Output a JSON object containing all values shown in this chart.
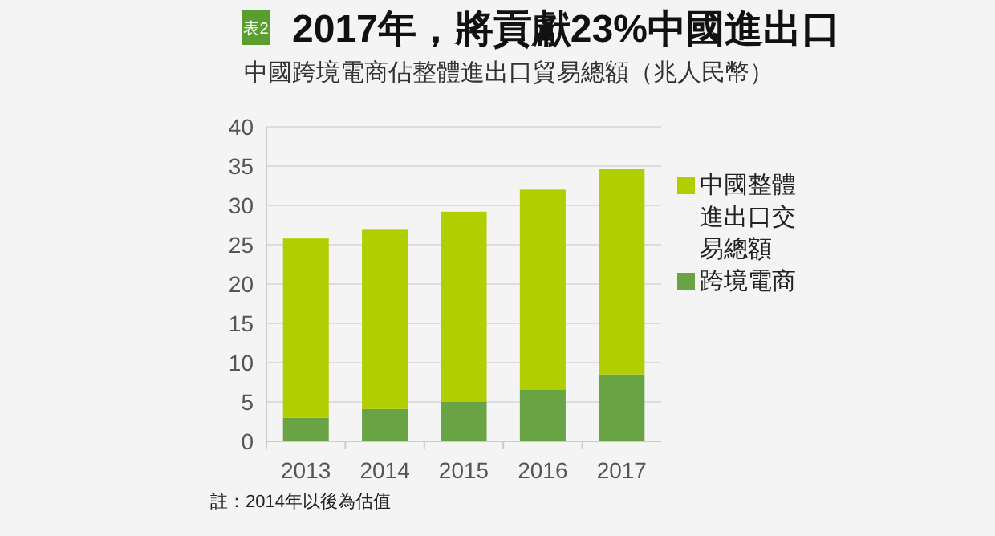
{
  "chart_data": {
    "type": "bar",
    "title": "2017年，將貢獻23%中國進出口",
    "subtitle": "中國跨境電商佔整體進出口貿易總額（兆人民幣）",
    "annotations": [
      "表2",
      "註：2014年以後為估值"
    ],
    "categories": [
      "2013",
      "2014",
      "2015",
      "2016",
      "2017"
    ],
    "stacked": true,
    "series": [
      {
        "name": "跨境電商",
        "color": "#6aa343",
        "values": [
          3.0,
          4.1,
          5.0,
          6.6,
          8.5
        ]
      },
      {
        "name": "中國整體進出口交易總額",
        "color": "#b1cf00",
        "values": [
          22.8,
          22.8,
          24.2,
          25.4,
          26.1
        ]
      }
    ],
    "ylim": [
      0,
      40
    ],
    "yticks": [
      0,
      5,
      10,
      15,
      20,
      25,
      30,
      35,
      40
    ],
    "grid": "y",
    "legend": "right"
  }
}
